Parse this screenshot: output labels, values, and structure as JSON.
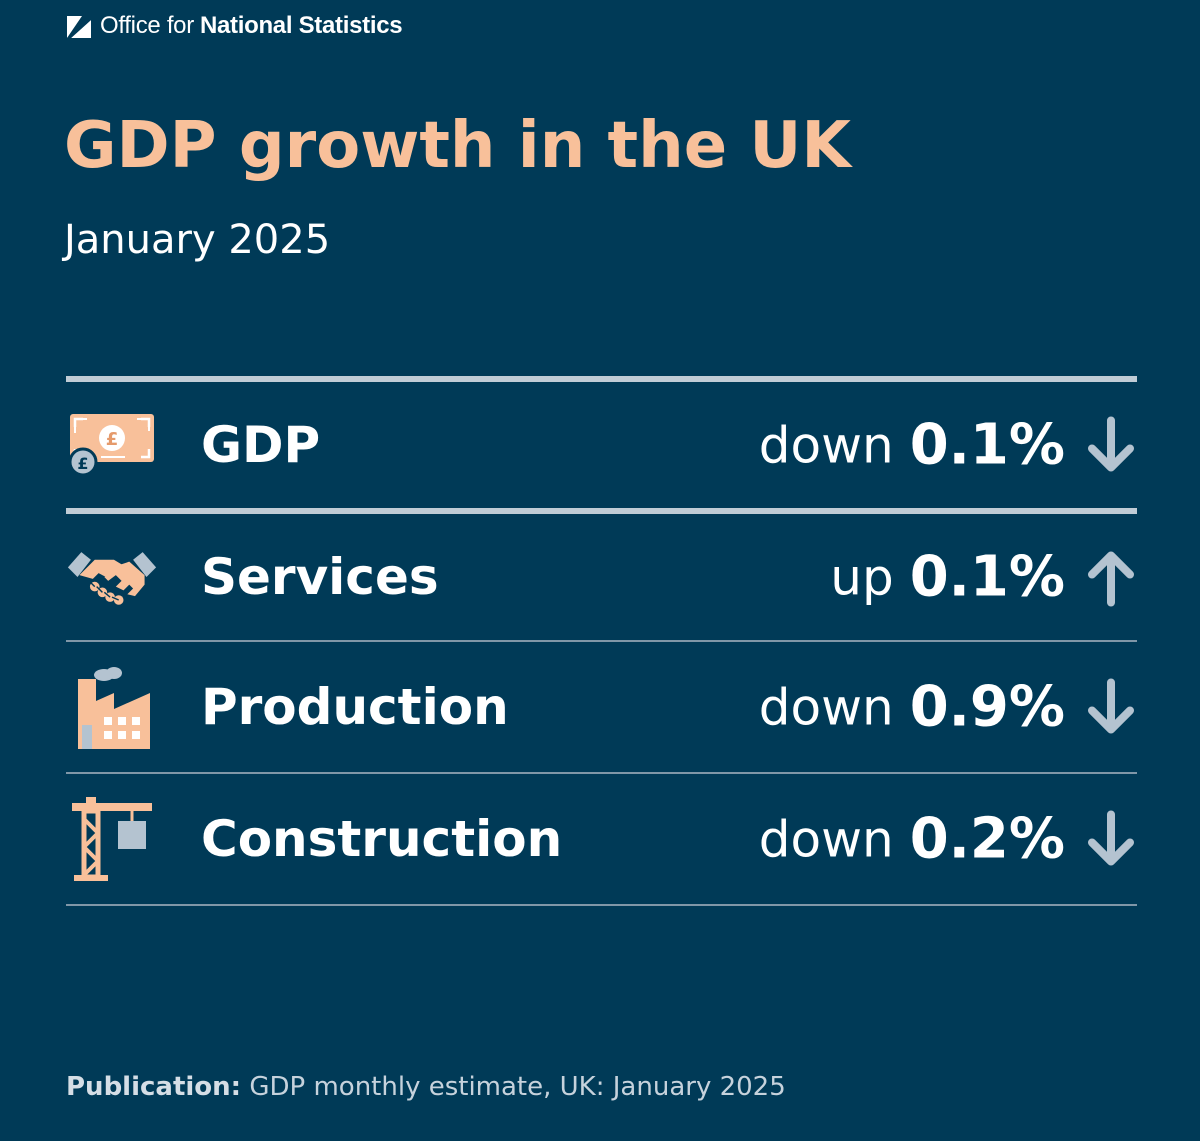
{
  "logo": {
    "prefix": "Office for",
    "name": "National Statistics"
  },
  "title": "GDP growth in the UK",
  "subtitle": "January 2025",
  "rows": [
    {
      "label": "GDP",
      "direction": "down",
      "value": "0.1%",
      "icon": "money-icon",
      "arrow": "arrow-down-icon"
    },
    {
      "label": "Services",
      "direction": "up",
      "value": "0.1%",
      "icon": "handshake-icon",
      "arrow": "arrow-up-icon"
    },
    {
      "label": "Production",
      "direction": "down",
      "value": "0.9%",
      "icon": "factory-icon",
      "arrow": "arrow-down-icon"
    },
    {
      "label": "Construction",
      "direction": "down",
      "value": "0.2%",
      "icon": "crane-icon",
      "arrow": "arrow-down-icon"
    }
  ],
  "footer": {
    "label": "Publication:",
    "text": "GDP monthly estimate, UK: January 2025"
  },
  "colors": {
    "background": "#003a57",
    "title": "#f8c09a",
    "icon_peach": "#f8c09a",
    "icon_grey": "#b4c3d0"
  }
}
